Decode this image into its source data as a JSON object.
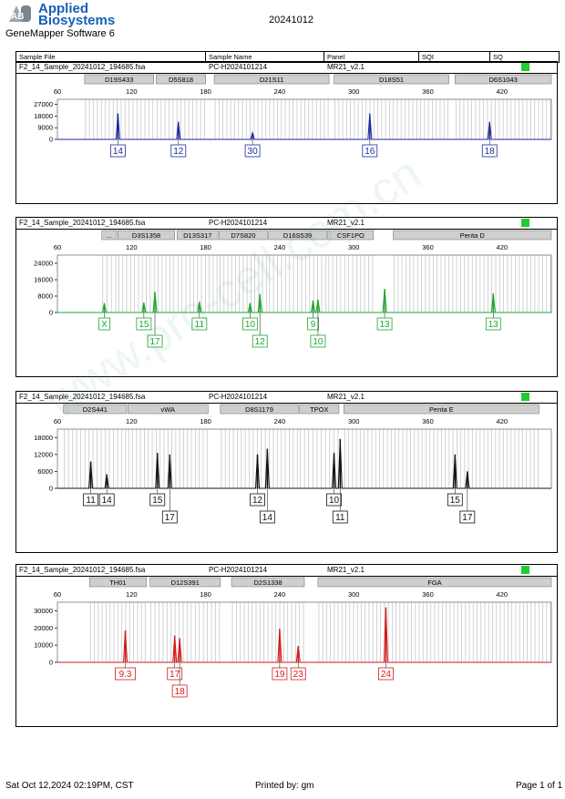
{
  "header": {
    "logo_line1": "Applied",
    "logo_line2": "Biosystems",
    "logo_mark": "AB",
    "app_name": "GeneMapper Software 6",
    "date": "20241012",
    "columns": [
      "Sample File",
      "Sample Name",
      "Panel",
      "SQI",
      "SQ"
    ]
  },
  "footer": {
    "timestamp": "Sat Oct 12,2024 02:19PM, CST",
    "printed_by": "Printed by: gm",
    "page": "Page 1 of 1"
  },
  "watermark": "www.pro-cell.com.cn",
  "colors": {
    "blue": "#1a2b9e",
    "green": "#1fa531",
    "black": "#111111",
    "red": "#d11b1b",
    "sq": "#22cc33"
  },
  "chart_data": [
    {
      "type": "line",
      "sample_file": "F2_14_Sample_20241012_194685.fsa",
      "sample_name": "PC-H2024101214",
      "panel": "MR21_v2.1",
      "color": "#1a2b9e",
      "xlim": [
        60,
        460
      ],
      "x_ticks": [
        60,
        120,
        180,
        240,
        300,
        360,
        420
      ],
      "ylim": [
        0,
        31000
      ],
      "y_ticks": [
        0,
        9000,
        18000,
        27000
      ],
      "loci": [
        {
          "name": "D19S433",
          "start": 82,
          "end": 138
        },
        {
          "name": "D5S818",
          "start": 140,
          "end": 180
        },
        {
          "name": "D21S11",
          "start": 187,
          "end": 280
        },
        {
          "name": "D18S51",
          "start": 284,
          "end": 377
        },
        {
          "name": "D6S1043",
          "start": 382,
          "end": 460
        }
      ],
      "peaks": [
        {
          "x": 109,
          "y": 20000
        },
        {
          "x": 158,
          "y": 13500
        },
        {
          "x": 218,
          "y": 5000
        },
        {
          "x": 313,
          "y": 20000
        },
        {
          "x": 410,
          "y": 13500
        }
      ],
      "labels": [
        {
          "text": "14",
          "x": 109,
          "row": 0
        },
        {
          "text": "12",
          "x": 158,
          "row": 0
        },
        {
          "text": "30",
          "x": 218,
          "row": 0
        },
        {
          "text": "16",
          "x": 313,
          "row": 0
        },
        {
          "text": "18",
          "x": 410,
          "row": 0
        }
      ]
    },
    {
      "type": "line",
      "sample_file": "F2_14_Sample_20241012_194685.fsa",
      "sample_name": "PC-H2024101214",
      "panel": "MR21_v2.1",
      "color": "#1fa531",
      "xlim": [
        60,
        460
      ],
      "x_ticks": [
        60,
        120,
        180,
        240,
        300,
        360,
        420
      ],
      "ylim": [
        0,
        28000
      ],
      "y_ticks": [
        0,
        8000,
        16000,
        24000
      ],
      "loci": [
        {
          "name": "...",
          "start": 96,
          "end": 108
        },
        {
          "name": "D3S1358",
          "start": 109,
          "end": 155
        },
        {
          "name": "D13S317",
          "start": 157,
          "end": 190
        },
        {
          "name": "D7S820",
          "start": 191,
          "end": 230
        },
        {
          "name": "D16S539",
          "start": 231,
          "end": 278
        },
        {
          "name": "CSF1PO",
          "start": 279,
          "end": 316
        },
        {
          "name": "Penta D",
          "start": 332,
          "end": 460
        }
      ],
      "peaks": [
        {
          "x": 98,
          "y": 4500
        },
        {
          "x": 130,
          "y": 4800
        },
        {
          "x": 139,
          "y": 10000
        },
        {
          "x": 175,
          "y": 5200
        },
        {
          "x": 216,
          "y": 4500
        },
        {
          "x": 224,
          "y": 9000
        },
        {
          "x": 267,
          "y": 5800
        },
        {
          "x": 271,
          "y": 6300
        },
        {
          "x": 325,
          "y": 11500
        },
        {
          "x": 413,
          "y": 9300
        }
      ],
      "labels": [
        {
          "text": "X",
          "x": 98,
          "row": 0
        },
        {
          "text": "15",
          "x": 130,
          "row": 0
        },
        {
          "text": "17",
          "x": 139,
          "row": 1
        },
        {
          "text": "11",
          "x": 175,
          "row": 0
        },
        {
          "text": "10",
          "x": 216,
          "row": 0
        },
        {
          "text": "12",
          "x": 224,
          "row": 1
        },
        {
          "text": "9",
          "x": 267,
          "row": 0
        },
        {
          "text": "10",
          "x": 271,
          "row": 1
        },
        {
          "text": "13",
          "x": 325,
          "row": 0
        },
        {
          "text": "13",
          "x": 413,
          "row": 0
        }
      ]
    },
    {
      "type": "line",
      "sample_file": "F2_14_Sample_20241012_194685.fsa",
      "sample_name": "PC-H2024101214",
      "panel": "MR21_v2.1",
      "color": "#111111",
      "xlim": [
        60,
        460
      ],
      "x_ticks": [
        60,
        120,
        180,
        240,
        300,
        360,
        420
      ],
      "ylim": [
        0,
        21000
      ],
      "y_ticks": [
        0,
        6000,
        12000,
        18000
      ],
      "loci": [
        {
          "name": "D2S441",
          "start": 65,
          "end": 116
        },
        {
          "name": "vWA",
          "start": 117,
          "end": 182
        },
        {
          "name": "D8S1179",
          "start": 192,
          "end": 255
        },
        {
          "name": "TPOX",
          "start": 256,
          "end": 288
        },
        {
          "name": "Penta E",
          "start": 292,
          "end": 450
        }
      ],
      "peaks": [
        {
          "x": 87,
          "y": 9500
        },
        {
          "x": 100,
          "y": 5000
        },
        {
          "x": 141,
          "y": 12500
        },
        {
          "x": 151,
          "y": 12000
        },
        {
          "x": 222,
          "y": 12000
        },
        {
          "x": 230,
          "y": 14000
        },
        {
          "x": 284,
          "y": 12500
        },
        {
          "x": 289,
          "y": 17500
        },
        {
          "x": 382,
          "y": 12000
        },
        {
          "x": 392,
          "y": 6000
        }
      ],
      "labels": [
        {
          "text": "11",
          "x": 87,
          "row": 0
        },
        {
          "text": "14",
          "x": 100,
          "row": 0
        },
        {
          "text": "15",
          "x": 141,
          "row": 0
        },
        {
          "text": "17",
          "x": 151,
          "row": 1
        },
        {
          "text": "12",
          "x": 222,
          "row": 0
        },
        {
          "text": "14",
          "x": 230,
          "row": 1
        },
        {
          "text": "10",
          "x": 284,
          "row": 0
        },
        {
          "text": "11",
          "x": 289,
          "row": 1
        },
        {
          "text": "15",
          "x": 382,
          "row": 0
        },
        {
          "text": "17",
          "x": 392,
          "row": 1
        }
      ]
    },
    {
      "type": "line",
      "sample_file": "F2_14_Sample_20241012_194685.fsa",
      "sample_name": "PC-H2024101214",
      "panel": "MR21_v2.1",
      "color": "#d11b1b",
      "xlim": [
        60,
        460
      ],
      "x_ticks": [
        60,
        120,
        180,
        240,
        300,
        360,
        420
      ],
      "ylim": [
        0,
        35000
      ],
      "y_ticks": [
        0,
        10000,
        20000,
        30000
      ],
      "loci": [
        {
          "name": "TH01",
          "start": 86,
          "end": 132
        },
        {
          "name": "D12S391",
          "start": 135,
          "end": 192
        },
        {
          "name": "D2S1338",
          "start": 201,
          "end": 260
        },
        {
          "name": "FGA",
          "start": 271,
          "end": 460
        }
      ],
      "peaks": [
        {
          "x": 115,
          "y": 18500
        },
        {
          "x": 155,
          "y": 15500
        },
        {
          "x": 159,
          "y": 14000
        },
        {
          "x": 240,
          "y": 19500
        },
        {
          "x": 255,
          "y": 9500
        },
        {
          "x": 326,
          "y": 32000
        }
      ],
      "labels": [
        {
          "text": "9.3",
          "x": 115,
          "row": 0
        },
        {
          "text": "17",
          "x": 155,
          "row": 0
        },
        {
          "text": "18",
          "x": 159,
          "row": 1
        },
        {
          "text": "19",
          "x": 240,
          "row": 0
        },
        {
          "text": "23",
          "x": 255,
          "row": 0
        },
        {
          "text": "24",
          "x": 326,
          "row": 0
        }
      ]
    }
  ]
}
